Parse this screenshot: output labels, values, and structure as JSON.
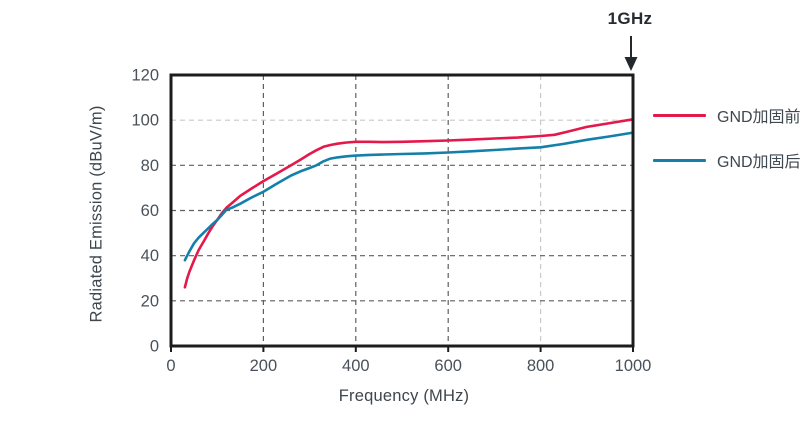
{
  "colors": {
    "background": "#ffffff",
    "axis": "#1c1c1c",
    "grid_dark": "#5f5f5f",
    "grid_light": "#c9c9c9",
    "axis_title_text": "#3e464e",
    "tick_text": "#49525a",
    "annotation_arrow": "#23282d",
    "series_before": "#e4184a",
    "series_after": "#1480aa"
  },
  "chart_data": {
    "type": "line",
    "title": "",
    "xlabel": "Frequency (MHz)",
    "ylabel": "Radiated Emission (dBuV/m)",
    "xlim": [
      0,
      1000
    ],
    "ylim": [
      0,
      120
    ],
    "xticks": [
      0,
      200,
      400,
      600,
      800,
      1000
    ],
    "yticks": [
      0,
      20,
      40,
      60,
      80,
      100,
      120
    ],
    "grid": "dashed",
    "light_gridlines": {
      "x": [
        800
      ],
      "y": [
        100
      ]
    },
    "legend_position": "right-outside",
    "annotation": {
      "text": "1GHz",
      "x": 1000,
      "arrow": "down"
    },
    "series": [
      {
        "name": "GND加固前",
        "color": "#e4184a",
        "x": [
          30,
          35,
          40,
          50,
          60,
          70,
          80,
          90,
          100,
          110,
          120,
          135,
          150,
          175,
          200,
          230,
          260,
          280,
          300,
          315,
          330,
          345,
          360,
          380,
          400,
          430,
          460,
          500,
          550,
          600,
          650,
          700,
          750,
          800,
          830,
          860,
          900,
          950,
          1000
        ],
        "y": [
          26,
          30,
          33,
          38,
          42.5,
          46,
          49.7,
          53,
          55.8,
          58.8,
          61.2,
          63.8,
          66.5,
          69.8,
          73,
          76.5,
          80,
          82.5,
          85,
          86.7,
          88.2,
          89,
          89.6,
          90.1,
          90.4,
          90.4,
          90.3,
          90.4,
          90.7,
          91,
          91.4,
          91.9,
          92.3,
          93,
          93.5,
          95,
          97,
          98.7,
          100.4
        ]
      },
      {
        "name": "GND加固后",
        "color": "#1480aa",
        "x": [
          30,
          35,
          40,
          50,
          60,
          70,
          80,
          90,
          100,
          110,
          120,
          135,
          150,
          175,
          200,
          230,
          260,
          280,
          300,
          315,
          330,
          345,
          360,
          380,
          400,
          430,
          460,
          500,
          550,
          600,
          650,
          700,
          750,
          800,
          850,
          900,
          950,
          1000
        ],
        "y": [
          38,
          40,
          42,
          45.5,
          48,
          50,
          52,
          54,
          55.8,
          58,
          60.3,
          61.5,
          63,
          65.8,
          68.3,
          72,
          75.5,
          77.3,
          78.8,
          80,
          81.8,
          83,
          83.5,
          84,
          84.3,
          84.6,
          84.8,
          85,
          85.3,
          85.7,
          86.2,
          86.8,
          87.4,
          88,
          89.5,
          91.3,
          92.8,
          94.5
        ]
      }
    ]
  }
}
